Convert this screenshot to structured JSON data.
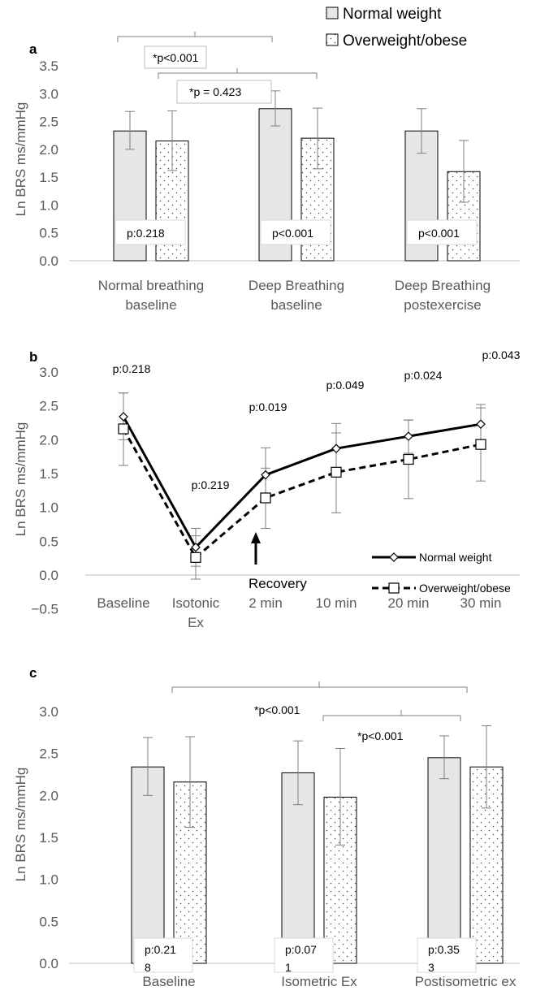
{
  "colors": {
    "normal_fill": "#e6e6e6",
    "bar_stroke": "#000000",
    "axis_text": "#595959",
    "error_bar": "#7f7f7f",
    "bracket": "#7f7f7f"
  },
  "legend": {
    "normal_label": "Normal weight",
    "over_label": "Overweight/obese",
    "placement": "top-right"
  },
  "chart_data": [
    {
      "panel": "a",
      "type": "bar",
      "ylabel": "Ln BRS ms/mmHg",
      "ylim": [
        0,
        3.5
      ],
      "yticks": [
        "0.0",
        "0.5",
        "1.0",
        "1.5",
        "2.0",
        "2.5",
        "3.0",
        "3.5"
      ],
      "categories": [
        [
          "Normal breathing",
          "baseline"
        ],
        [
          "Deep Breathing",
          "baseline"
        ],
        [
          "Deep Breathing",
          "postexercise"
        ]
      ],
      "series": [
        {
          "name": "Normal weight",
          "values": [
            2.33,
            2.73,
            2.33
          ],
          "err_low": [
            2.0,
            2.42,
            1.93
          ],
          "err_high": [
            2.68,
            3.05,
            2.73
          ]
        },
        {
          "name": "Overweight/obese",
          "values": [
            2.15,
            2.2,
            1.6
          ],
          "err_low": [
            1.62,
            1.65,
            1.05
          ],
          "err_high": [
            2.69,
            2.74,
            2.16
          ]
        }
      ],
      "bar_labels": [
        "p:0.218",
        "p<0.001",
        "p<0.001"
      ],
      "brackets": [
        "*p<0.001",
        "*p = 0.423"
      ]
    },
    {
      "panel": "b",
      "type": "line",
      "ylabel": "Ln BRS ms/mmHg",
      "ylim": [
        -0.5,
        3.0
      ],
      "yticks": [
        "−0.5",
        "0.0",
        "0.5",
        "1.0",
        "1.5",
        "2.0",
        "2.5",
        "3.0"
      ],
      "categories": [
        [
          "Baseline"
        ],
        [
          "Isotonic",
          "Ex"
        ],
        [
          "2 min"
        ],
        [
          "10 min"
        ],
        [
          "20 min"
        ],
        [
          "30 min"
        ]
      ],
      "series": [
        {
          "name": "Normal weight",
          "style": "solid-diamond",
          "values": [
            2.34,
            0.41,
            1.48,
            1.87,
            2.05,
            2.23
          ],
          "err_low": [
            2.0,
            0.13,
            1.07,
            1.5,
            1.8,
            1.94
          ],
          "err_high": [
            2.69,
            0.69,
            1.88,
            2.24,
            2.29,
            2.52
          ]
        },
        {
          "name": "Overweight/obese",
          "style": "dashed-square",
          "values": [
            2.16,
            0.26,
            1.14,
            1.52,
            1.71,
            1.93
          ],
          "err_low": [
            1.62,
            -0.06,
            0.69,
            0.92,
            1.13,
            1.39
          ],
          "err_high": [
            2.69,
            0.58,
            1.58,
            2.1,
            2.29,
            2.47
          ]
        }
      ],
      "point_labels": [
        "p:0.218",
        "p:0.219",
        "p:0.019",
        "p:0.049",
        "p:0.024",
        "p:0.043"
      ],
      "annotation": "Recovery"
    },
    {
      "panel": "c",
      "type": "bar",
      "ylabel": "Ln BRS ms/mmHg",
      "ylim": [
        0,
        3.0
      ],
      "yticks": [
        "0.0",
        "0.5",
        "1.0",
        "1.5",
        "2.0",
        "2.5",
        "3.0"
      ],
      "categories": [
        [
          "Baseline"
        ],
        [
          "Isometric Ex"
        ],
        [
          "Postisometric ex"
        ]
      ],
      "series": [
        {
          "name": "Normal weight",
          "values": [
            2.34,
            2.27,
            2.45
          ],
          "err_low": [
            2.0,
            1.89,
            2.2
          ],
          "err_high": [
            2.69,
            2.65,
            2.71
          ]
        },
        {
          "name": "Overweight/obese",
          "values": [
            2.16,
            1.98,
            2.34
          ],
          "err_low": [
            1.62,
            1.41,
            1.85
          ],
          "err_high": [
            2.7,
            2.56,
            2.83
          ]
        }
      ],
      "bar_labels": [
        [
          "p:0.21",
          "8"
        ],
        [
          "p:0.07",
          "1"
        ],
        [
          "p:0.35",
          "3"
        ]
      ],
      "brackets": [
        "*p<0.001",
        "*p<0.001"
      ]
    }
  ]
}
